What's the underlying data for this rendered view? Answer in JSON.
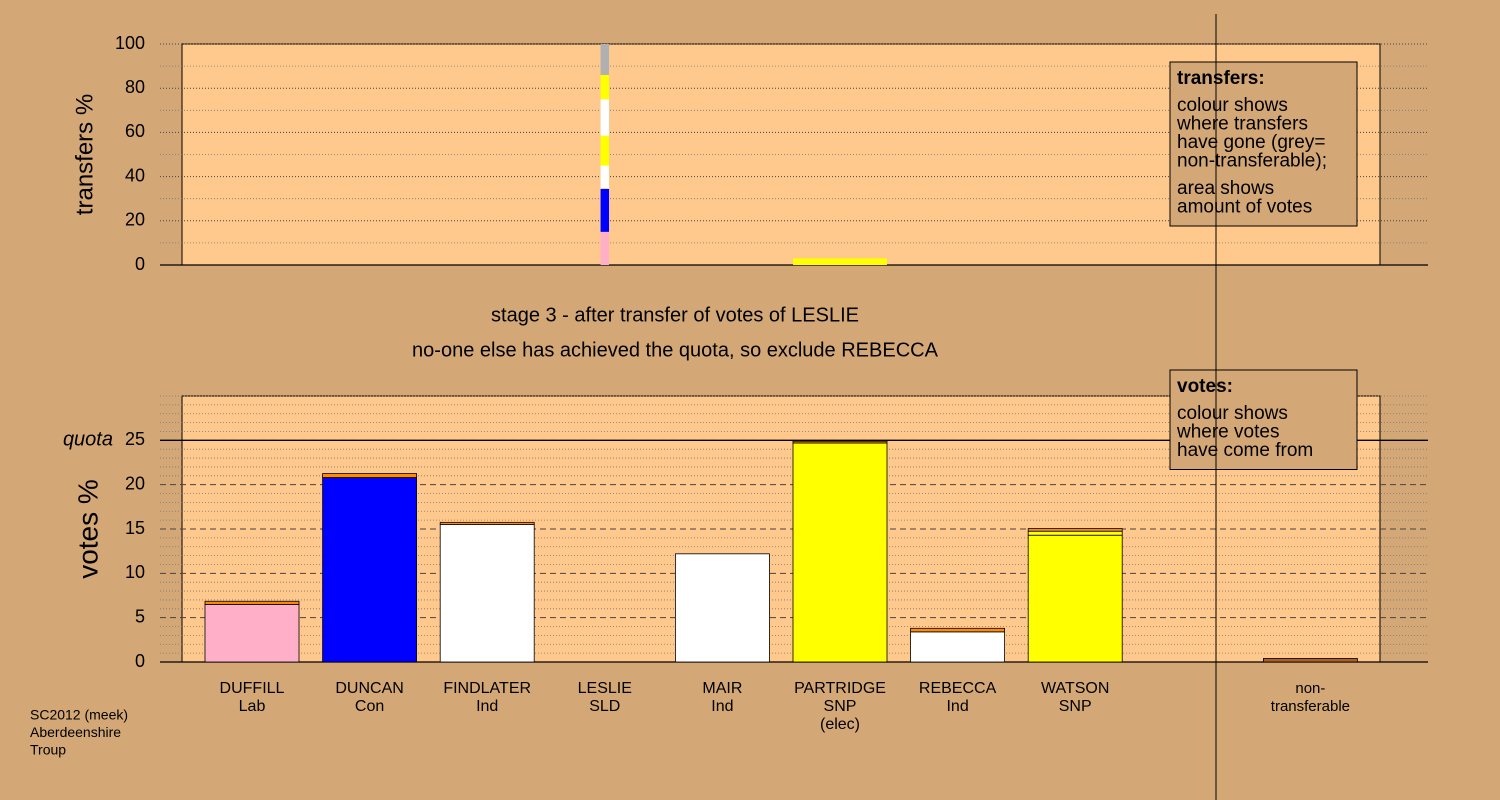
{
  "chart_data": [
    {
      "type": "bar",
      "ylabel": "transfers %",
      "ylim": [
        0,
        100
      ],
      "yticks": [
        0,
        20,
        40,
        60,
        80,
        100
      ],
      "stacks": [
        null,
        null,
        null,
        {
          "width": 0.09,
          "segments": [
            {
              "value": 15,
              "color": "#ffb0c8"
            },
            {
              "value": 19.5,
              "color": "#0000ff"
            },
            {
              "value": 10.5,
              "color": "#ffffff"
            },
            {
              "value": 13.5,
              "color": "#ffff00"
            },
            {
              "value": 16.5,
              "color": "#ffffff"
            },
            {
              "value": 11,
              "color": "#ffff00"
            },
            {
              "value": 14,
              "color": "#b0b0b0"
            }
          ]
        },
        null,
        {
          "width": 1,
          "segments": [
            {
              "value": 3,
              "color": "#ffff00"
            }
          ]
        },
        null,
        null,
        null,
        null
      ],
      "legend": {
        "heading": "transfers:",
        "paragraphs": [
          [
            "colour shows",
            "where transfers",
            "have gone (grey=",
            "non-transferable);"
          ],
          [
            "area shows",
            "amount of votes"
          ]
        ]
      }
    },
    {
      "type": "bar",
      "title": [
        "stage 3 - after transfer of votes of LESLIE",
        "no-one else has achieved the quota, so exclude REBECCA"
      ],
      "ylabel": "votes %",
      "ylim": [
        0,
        30
      ],
      "yticks": [
        0,
        5,
        10,
        15,
        20,
        25
      ],
      "quota": 25,
      "quota_label": "quota",
      "categories": [
        [
          "DUFFILL",
          "Lab"
        ],
        [
          "DUNCAN",
          "Con"
        ],
        [
          "FINDLATER",
          "Ind"
        ],
        [
          "LESLIE",
          "SLD"
        ],
        [
          "MAIR",
          "Ind"
        ],
        [
          "PARTRIDGE",
          "SNP",
          "(elec)"
        ],
        [
          "REBECCA",
          "Ind"
        ],
        [
          "WATSON",
          "SNP"
        ],
        null,
        [
          "non-",
          "transferable"
        ]
      ],
      "stacks": [
        {
          "segments": [
            {
              "value": 6.5,
              "color": "#ffb0c8"
            },
            {
              "value": 0.35,
              "color": "#ff8c00"
            }
          ]
        },
        {
          "segments": [
            {
              "value": 20.8,
              "color": "#0000ff"
            },
            {
              "value": 0.45,
              "color": "#ff8c00"
            }
          ]
        },
        {
          "segments": [
            {
              "value": 15.5,
              "color": "#ffffff"
            },
            {
              "value": 0.25,
              "color": "#ff8c00"
            }
          ]
        },
        {
          "segments": [
            {
              "value": 0,
              "color": "#ff8c00"
            }
          ]
        },
        {
          "segments": [
            {
              "value": 12.2,
              "color": "#ffffff"
            }
          ]
        },
        {
          "segments": [
            {
              "value": 24.7,
              "color": "#ffff00"
            },
            {
              "value": 0.2,
              "color": "#ff8c00"
            }
          ]
        },
        {
          "segments": [
            {
              "value": 3.4,
              "color": "#ffffff"
            },
            {
              "value": 0.4,
              "color": "#ff8c00"
            }
          ]
        },
        {
          "segments": [
            {
              "value": 14.3,
              "color": "#ffff00"
            },
            {
              "value": 0.45,
              "color": "#ffff00"
            },
            {
              "value": 0.3,
              "color": "#ff8c00"
            }
          ]
        },
        null,
        {
          "segments": [
            {
              "value": 0.4,
              "color": "#b0601e"
            }
          ]
        }
      ],
      "legend": {
        "heading": "votes:",
        "paragraphs": [
          [
            "colour shows",
            "where votes",
            "have come from"
          ]
        ]
      }
    }
  ],
  "footer": [
    "SC2012 (meek)",
    "Aberdeenshire",
    "Troup"
  ]
}
